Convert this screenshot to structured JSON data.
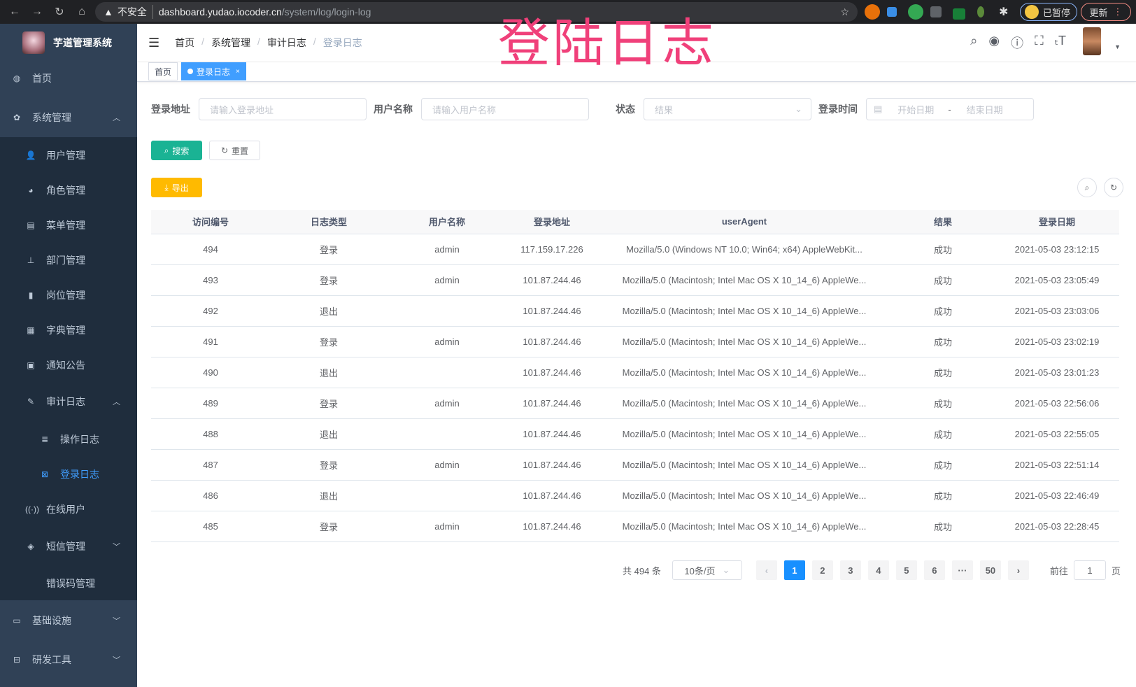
{
  "browser": {
    "insecure": "不安全",
    "host": "dashboard.yudao.iocoder.cn",
    "path": "/system/log/login-log",
    "profile": "已暂停",
    "update": "更新"
  },
  "overlay_title": "登陆日志",
  "sidebar": {
    "app_name": "芋道管理系统",
    "items": [
      {
        "label": "首页",
        "icon": "dashboard-icon"
      },
      {
        "label": "系统管理",
        "icon": "gear-icon",
        "expanded": true
      },
      {
        "label": "用户管理",
        "icon": "user-icon"
      },
      {
        "label": "角色管理",
        "icon": "peoples-icon"
      },
      {
        "label": "菜单管理",
        "icon": "tree-table-icon"
      },
      {
        "label": "部门管理",
        "icon": "tree-icon"
      },
      {
        "label": "岗位管理",
        "icon": "post-icon"
      },
      {
        "label": "字典管理",
        "icon": "dict-icon"
      },
      {
        "label": "通知公告",
        "icon": "message-icon"
      },
      {
        "label": "审计日志",
        "icon": "log-icon",
        "expanded": true
      },
      {
        "label": "操作日志",
        "icon": "form-icon"
      },
      {
        "label": "登录日志",
        "icon": "logininfor-icon",
        "active": true
      },
      {
        "label": "在线用户",
        "icon": "online-icon"
      },
      {
        "label": "短信管理",
        "icon": "validcode-icon",
        "expanded": false
      },
      {
        "label": "错误码管理",
        "icon": "code-icon"
      },
      {
        "label": "基础设施",
        "icon": "monitor-icon",
        "expanded": false
      },
      {
        "label": "研发工具",
        "icon": "tool-icon",
        "expanded": false
      }
    ]
  },
  "breadcrumb": [
    "首页",
    "系统管理",
    "审计日志",
    "登录日志"
  ],
  "tags": [
    {
      "label": "首页"
    },
    {
      "label": "登录日志",
      "active": true
    }
  ],
  "filters": {
    "address": {
      "label": "登录地址",
      "placeholder": "请输入登录地址"
    },
    "username": {
      "label": "用户名称",
      "placeholder": "请输入用户名称"
    },
    "status": {
      "label": "状态",
      "placeholder": "结果"
    },
    "time": {
      "label": "登录时间",
      "start": "开始日期",
      "sep": "-",
      "end": "结束日期"
    }
  },
  "buttons": {
    "search": "搜索",
    "reset": "重置",
    "export": "导出"
  },
  "colors": {
    "sidebar": "#304156",
    "active": "#409eff",
    "search_btn": "#1ab394",
    "export_btn": "#ffba00",
    "overlay": "#f0407a"
  },
  "table": {
    "columns": [
      "访问编号",
      "日志类型",
      "用户名称",
      "登录地址",
      "userAgent",
      "结果",
      "登录日期"
    ],
    "rows": [
      [
        "494",
        "登录",
        "admin",
        "117.159.17.226",
        "Mozilla/5.0 (Windows NT 10.0; Win64; x64) AppleWebKit...",
        "成功",
        "2021-05-03 23:12:15"
      ],
      [
        "493",
        "登录",
        "admin",
        "101.87.244.46",
        "Mozilla/5.0 (Macintosh; Intel Mac OS X 10_14_6) AppleWe...",
        "成功",
        "2021-05-03 23:05:49"
      ],
      [
        "492",
        "退出",
        "",
        "101.87.244.46",
        "Mozilla/5.0 (Macintosh; Intel Mac OS X 10_14_6) AppleWe...",
        "成功",
        "2021-05-03 23:03:06"
      ],
      [
        "491",
        "登录",
        "admin",
        "101.87.244.46",
        "Mozilla/5.0 (Macintosh; Intel Mac OS X 10_14_6) AppleWe...",
        "成功",
        "2021-05-03 23:02:19"
      ],
      [
        "490",
        "退出",
        "",
        "101.87.244.46",
        "Mozilla/5.0 (Macintosh; Intel Mac OS X 10_14_6) AppleWe...",
        "成功",
        "2021-05-03 23:01:23"
      ],
      [
        "489",
        "登录",
        "admin",
        "101.87.244.46",
        "Mozilla/5.0 (Macintosh; Intel Mac OS X 10_14_6) AppleWe...",
        "成功",
        "2021-05-03 22:56:06"
      ],
      [
        "488",
        "退出",
        "",
        "101.87.244.46",
        "Mozilla/5.0 (Macintosh; Intel Mac OS X 10_14_6) AppleWe...",
        "成功",
        "2021-05-03 22:55:05"
      ],
      [
        "487",
        "登录",
        "admin",
        "101.87.244.46",
        "Mozilla/5.0 (Macintosh; Intel Mac OS X 10_14_6) AppleWe...",
        "成功",
        "2021-05-03 22:51:14"
      ],
      [
        "486",
        "退出",
        "",
        "101.87.244.46",
        "Mozilla/5.0 (Macintosh; Intel Mac OS X 10_14_6) AppleWe...",
        "成功",
        "2021-05-03 22:46:49"
      ],
      [
        "485",
        "登录",
        "admin",
        "101.87.244.46",
        "Mozilla/5.0 (Macintosh; Intel Mac OS X 10_14_6) AppleWe...",
        "成功",
        "2021-05-03 22:28:45"
      ]
    ]
  },
  "pagination": {
    "total": "共 494 条",
    "page_size": "10条/页",
    "pages": [
      "1",
      "2",
      "3",
      "4",
      "5",
      "6",
      "···",
      "50"
    ],
    "current": "1",
    "goto_prefix": "前往",
    "goto_value": "1",
    "goto_suffix": "页"
  }
}
